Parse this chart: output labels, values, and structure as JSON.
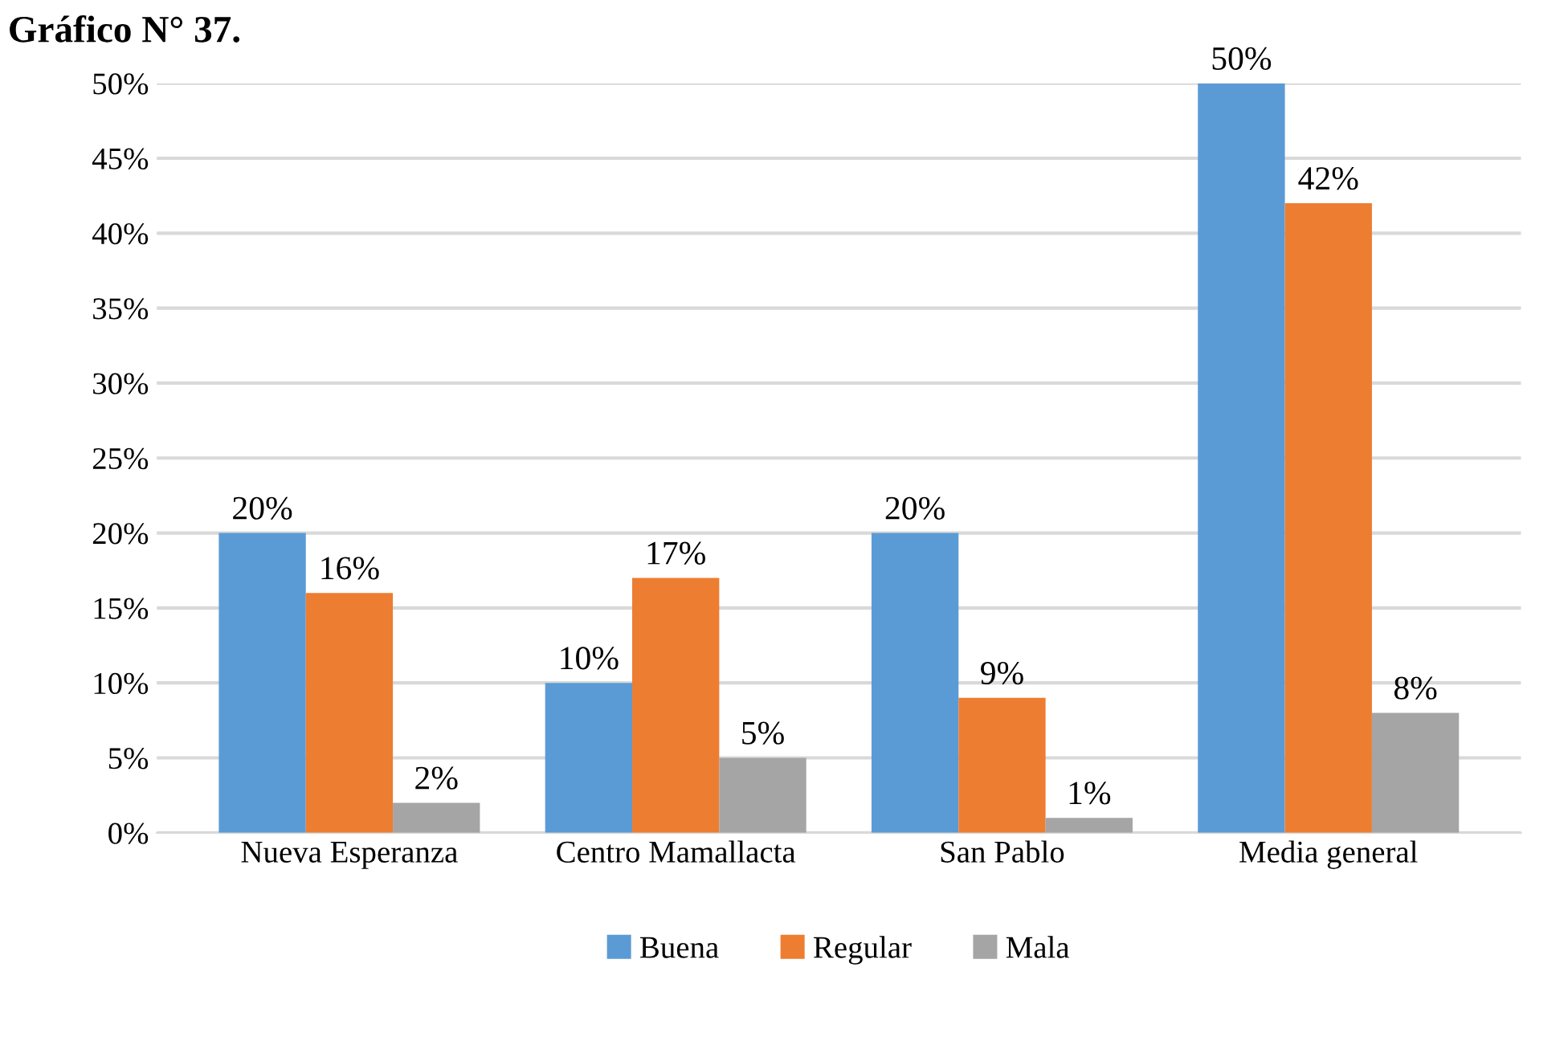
{
  "chart_data": {
    "type": "bar",
    "title": "Gráfico N° 37.",
    "categories": [
      "Nueva Esperanza",
      "Centro Mamallacta",
      "San Pablo",
      "Media general"
    ],
    "series": [
      {
        "name": "Buena",
        "color": "#5b9bd5",
        "values": [
          20,
          10,
          20,
          50
        ]
      },
      {
        "name": "Regular",
        "color": "#ed7d31",
        "values": [
          16,
          17,
          9,
          42
        ]
      },
      {
        "name": "Mala",
        "color": "#a5a5a5",
        "values": [
          2,
          5,
          1,
          8
        ]
      }
    ],
    "ylim": [
      0,
      50
    ],
    "yticks": [
      {
        "value": 0,
        "label": "0%"
      },
      {
        "value": 5,
        "label": "5%"
      },
      {
        "value": 10,
        "label": "10%"
      },
      {
        "value": 15,
        "label": "15%"
      },
      {
        "value": 20,
        "label": "20%"
      },
      {
        "value": 25,
        "label": "25%"
      },
      {
        "value": 30,
        "label": "30%"
      },
      {
        "value": 35,
        "label": "35%"
      },
      {
        "value": 40,
        "label": "40%"
      },
      {
        "value": 45,
        "label": "45%"
      },
      {
        "value": 50,
        "label": "50%"
      }
    ],
    "value_labels": [
      [
        "20%",
        "10%",
        "20%",
        "50%"
      ],
      [
        "16%",
        "17%",
        "9%",
        "42%"
      ],
      [
        "2%",
        "5%",
        "1%",
        "8%"
      ]
    ],
    "grid": "y",
    "legend": "bottom"
  }
}
